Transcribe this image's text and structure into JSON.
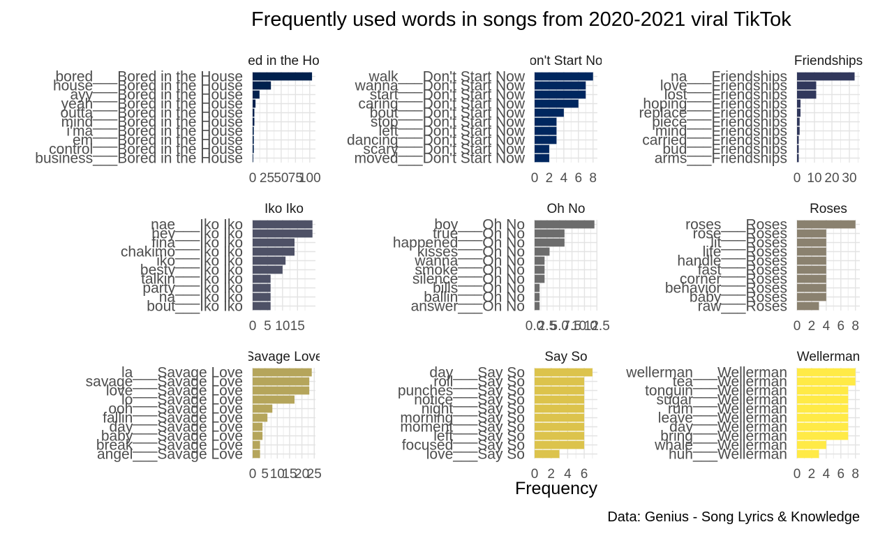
{
  "title": "Frequently used words in songs from 2020-2021 viral TikTok",
  "caption": "Data: Genius - Song Lyrics & Knowledge",
  "chart_data": {
    "type": "bar",
    "orientation": "horizontal",
    "title": "Frequently used words in songs from 2020-2021 viral TikTok",
    "xlabel": "Frequency",
    "ylabel": "",
    "grid": true,
    "legend": "none",
    "facets": [
      {
        "name": "Bored in the House",
        "color": "#00204d",
        "xlim": [
          0,
          110
        ],
        "ticks": [
          0,
          25,
          50,
          75,
          100
        ],
        "tick_labels": [
          "0",
          "25",
          "50",
          "75",
          "100"
        ],
        "categories": [
          "bored___Bored in the House",
          "house___Bored in the House",
          "ayy___Bored in the House",
          "yeah___Bored in the House",
          "outta___Bored in the House",
          "mind___Bored in the House",
          "i'ma___Bored in the House",
          "em___Bored in the House",
          "control___Bored in the House",
          "business___Bored in the House"
        ],
        "values": [
          104,
          32,
          12,
          5,
          3,
          3,
          2,
          2,
          2,
          1
        ]
      },
      {
        "name": "Don't Start Now",
        "color": "#00275f",
        "xlim": [
          0,
          8.6
        ],
        "ticks": [
          0,
          2,
          4,
          6,
          8
        ],
        "tick_labels": [
          "0",
          "2",
          "4",
          "6",
          "8"
        ],
        "categories": [
          "walk___Don't Start Now",
          "wanna___Don't Start Now",
          "start___Don't Start Now",
          "caring___Don't Start Now",
          "bout___Don't Start Now",
          "stop___Don't Start Now",
          "left___Don't Start Now",
          "dancing___Don't Start Now",
          "scary___Don't Start Now",
          "moved___Don't Start Now"
        ],
        "values": [
          8,
          7,
          7,
          6,
          4,
          3,
          3,
          3,
          2,
          2
        ]
      },
      {
        "name": "Friendships",
        "color": "#31385c",
        "xlim": [
          0,
          36
        ],
        "ticks": [
          0,
          10,
          20,
          30
        ],
        "tick_labels": [
          "0",
          "10",
          "20",
          "30"
        ],
        "categories": [
          "na___Friendships",
          "love___Friendships",
          "lost___Friendships",
          "hoping___Friendships",
          "replace___Friendships",
          "piece___Friendships",
          "mind___Friendships",
          "carried___Friendships",
          "bud___Friendships",
          "arms___Friendships"
        ],
        "values": [
          33,
          11,
          11,
          2,
          2,
          1.5,
          1.5,
          1,
          1,
          1
        ]
      },
      {
        "name": "Iko Iko",
        "color": "#4e5166",
        "xlim": [
          0,
          21
        ],
        "ticks": [
          0,
          5,
          10,
          15
        ],
        "tick_labels": [
          "0",
          "5",
          "10",
          "15"
        ],
        "categories": [
          "nae___Iko Iko",
          "hey___Iko Iko",
          "fina___Iko Iko",
          "chakimo___Iko Iko",
          "iko___Iko Iko",
          "besty___Iko Iko",
          "talkin___Iko Iko",
          "party___Iko Iko",
          "na___Iko Iko",
          "bout___Iko Iko"
        ],
        "values": [
          20,
          20,
          14,
          14,
          11,
          10,
          6,
          6,
          6,
          6
        ]
      },
      {
        "name": "Oh No",
        "color": "#6c6c6c",
        "xlim": [
          0,
          12.6
        ],
        "ticks": [
          0,
          2.5,
          5,
          7.5,
          10,
          12.5
        ],
        "tick_labels": [
          "0.0",
          "2.5",
          "5.0",
          "7.5",
          "10.0",
          "12.5"
        ],
        "categories": [
          "boy___Oh No",
          "true___Oh No",
          "happened___Oh No",
          "kisses___Oh No",
          "wanna___Oh No",
          "smoke___Oh No",
          "silence___Oh No",
          "bills___Oh No",
          "ballin___Oh No",
          "answer___Oh No"
        ],
        "values": [
          12,
          6,
          6,
          3,
          2,
          2,
          2,
          1,
          1,
          1
        ]
      },
      {
        "name": "Roses",
        "color": "#8a816f",
        "xlim": [
          0,
          8.6
        ],
        "ticks": [
          0,
          2,
          4,
          6,
          8
        ],
        "tick_labels": [
          "0",
          "2",
          "4",
          "6",
          "8"
        ],
        "categories": [
          "roses___Roses",
          "rose___Roses",
          "lit___Roses",
          "life___Roses",
          "handle___Roses",
          "fast___Roses",
          "corner___Roses",
          "behavior___Roses",
          "baby___Roses",
          "raw___Roses"
        ],
        "values": [
          8,
          4,
          4,
          4,
          4,
          4,
          4,
          4,
          4,
          3
        ]
      },
      {
        "name": "Savage Love",
        "color": "#b5a55b",
        "xlim": [
          0,
          25.5
        ],
        "ticks": [
          0,
          5,
          10,
          15,
          20,
          25
        ],
        "tick_labels": [
          "0",
          "5",
          "10",
          "15",
          "20",
          "25"
        ],
        "categories": [
          "la___Savage Love",
          "savage___Savage Love",
          "love___Savage Love",
          "lo___Savage Love",
          "ooh___Savage Love",
          "fallin___Savage Love",
          "day___Savage Love",
          "baby___Savage Love",
          "break___Savage Love",
          "angel___Savage Love"
        ],
        "values": [
          24,
          23,
          23,
          17,
          8,
          6,
          4,
          4,
          3,
          3
        ]
      },
      {
        "name": "Say So",
        "color": "#dcc34c",
        "xlim": [
          0,
          7.6
        ],
        "ticks": [
          0,
          2,
          4,
          6
        ],
        "tick_labels": [
          "0",
          "2",
          "4",
          "6"
        ],
        "categories": [
          "day___Say So",
          "roll___Say So",
          "punches___Say So",
          "notice___Say So",
          "night___Say So",
          "morning___Say So",
          "moment___Say So",
          "left___Say So",
          "focused___Say So",
          "love___Say So"
        ],
        "values": [
          7,
          6,
          6,
          6,
          6,
          6,
          6,
          6,
          6,
          3
        ]
      },
      {
        "name": "Wellerman",
        "color": "#ffea46",
        "xlim": [
          0,
          8.6
        ],
        "ticks": [
          0,
          2,
          4,
          6,
          8
        ],
        "tick_labels": [
          "0",
          "2",
          "4",
          "6",
          "8"
        ],
        "categories": [
          "wellerman___Wellerman",
          "tea___Wellerman",
          "tonguin___Wellerman",
          "sugar___Wellerman",
          "rum___Wellerman",
          "leave___Wellerman",
          "day___Wellerman",
          "bring___Wellerman",
          "whale___Wellerman",
          "huh___Wellerman"
        ],
        "values": [
          8,
          8,
          7,
          7,
          7,
          7,
          7,
          7,
          4,
          3
        ]
      }
    ]
  }
}
